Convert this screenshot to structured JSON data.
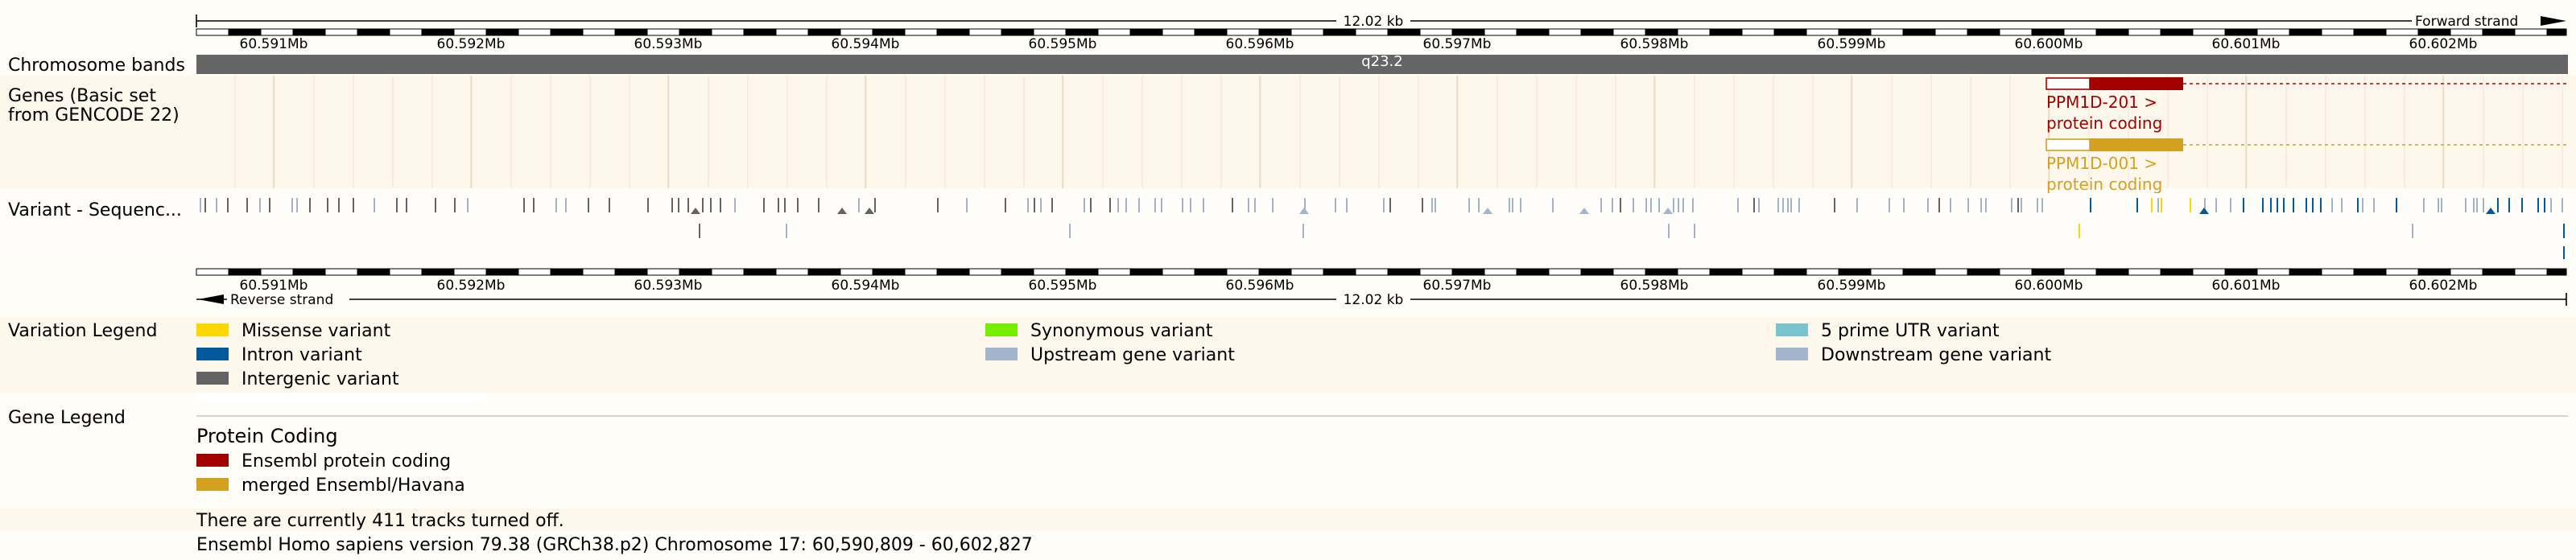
{
  "ruler": {
    "span_label": "12.02 kb",
    "forward_strand": "Forward strand",
    "reverse_strand": "Reverse strand",
    "ticks": [
      "60.591Mb",
      "60.592Mb",
      "60.593Mb",
      "60.594Mb",
      "60.595Mb",
      "60.596Mb",
      "60.597Mb",
      "60.598Mb",
      "60.599Mb",
      "60.600Mb",
      "60.601Mb",
      "60.602Mb"
    ]
  },
  "tracks": {
    "chromosome_bands": {
      "label": "Chromosome bands",
      "band_name": "q23.2"
    },
    "genes": {
      "label_line1": "Genes (Basic set",
      "label_line2": "from GENCODE 22)",
      "transcripts": [
        {
          "name": "PPM1D-201 >",
          "biotype": "protein coding",
          "color": "#a30000"
        },
        {
          "name": "PPM1D-001 >",
          "biotype": "protein coding",
          "color": "#d4a020"
        }
      ]
    },
    "variants": {
      "label": "Variant - Sequenc..."
    }
  },
  "variation_legend": {
    "label": "Variation Legend",
    "items": [
      {
        "label": "Missense variant",
        "color": "#ffd700"
      },
      {
        "label": "Synonymous variant",
        "color": "#76ee00"
      },
      {
        "label": "5 prime UTR variant",
        "color": "#7ac5cd"
      },
      {
        "label": "Intron variant",
        "color": "#02599c"
      },
      {
        "label": "Upstream gene variant",
        "color": "#a2b5cd"
      },
      {
        "label": "Downstream gene variant",
        "color": "#a2b5cd"
      },
      {
        "label": "Intergenic variant",
        "color": "#636363"
      }
    ]
  },
  "gene_legend": {
    "label": "Gene Legend",
    "heading": "Protein Coding",
    "items": [
      {
        "label": "Ensembl protein coding",
        "color": "#a30000"
      },
      {
        "label": "merged Ensembl/Havana",
        "color": "#d4a020"
      }
    ]
  },
  "footer": {
    "tracks_off": "There are currently 411 tracks turned off.",
    "version": "Ensembl Homo sapiens version 79.38 (GRCh38.p2) Chromosome 17: 60,590,809 - 60,602,827"
  }
}
